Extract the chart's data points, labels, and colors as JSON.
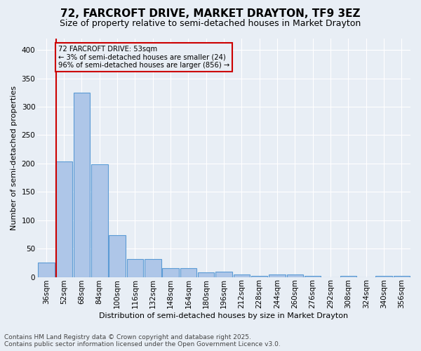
{
  "title": "72, FARCROFT DRIVE, MARKET DRAYTON, TF9 3EZ",
  "subtitle": "Size of property relative to semi-detached houses in Market Drayton",
  "xlabel": "Distribution of semi-detached houses by size in Market Drayton",
  "ylabel": "Number of semi-detached properties",
  "footer_line1": "Contains HM Land Registry data © Crown copyright and database right 2025.",
  "footer_line2": "Contains public sector information licensed under the Open Government Licence v3.0.",
  "annotation_title": "72 FARCROFT DRIVE: 53sqm",
  "annotation_line2": "← 3% of semi-detached houses are smaller (24)",
  "annotation_line3": "96% of semi-detached houses are larger (856) →",
  "bar_labels": [
    "36sqm",
    "52sqm",
    "68sqm",
    "84sqm",
    "100sqm",
    "116sqm",
    "132sqm",
    "148sqm",
    "164sqm",
    "180sqm",
    "196sqm",
    "212sqm",
    "228sqm",
    "244sqm",
    "260sqm",
    "276sqm",
    "292sqm",
    "308sqm",
    "324sqm",
    "340sqm",
    "356sqm"
  ],
  "bar_values": [
    25,
    204,
    325,
    199,
    74,
    32,
    32,
    15,
    15,
    8,
    9,
    4,
    2,
    4,
    4,
    2,
    0,
    2,
    0,
    2,
    2
  ],
  "bar_color": "#aec6e8",
  "bar_edge_color": "#5b9bd5",
  "bg_color": "#e8eef5",
  "grid_color": "#ffffff",
  "vline_x": 0.575,
  "vline_color": "#cc0000",
  "annotation_box_color": "#cc0000",
  "ylim": [
    0,
    420
  ],
  "yticks": [
    0,
    50,
    100,
    150,
    200,
    250,
    300,
    350,
    400
  ],
  "title_fontsize": 11,
  "subtitle_fontsize": 9,
  "ylabel_fontsize": 8,
  "xlabel_fontsize": 8,
  "tick_fontsize": 7.5,
  "footer_fontsize": 6.5
}
